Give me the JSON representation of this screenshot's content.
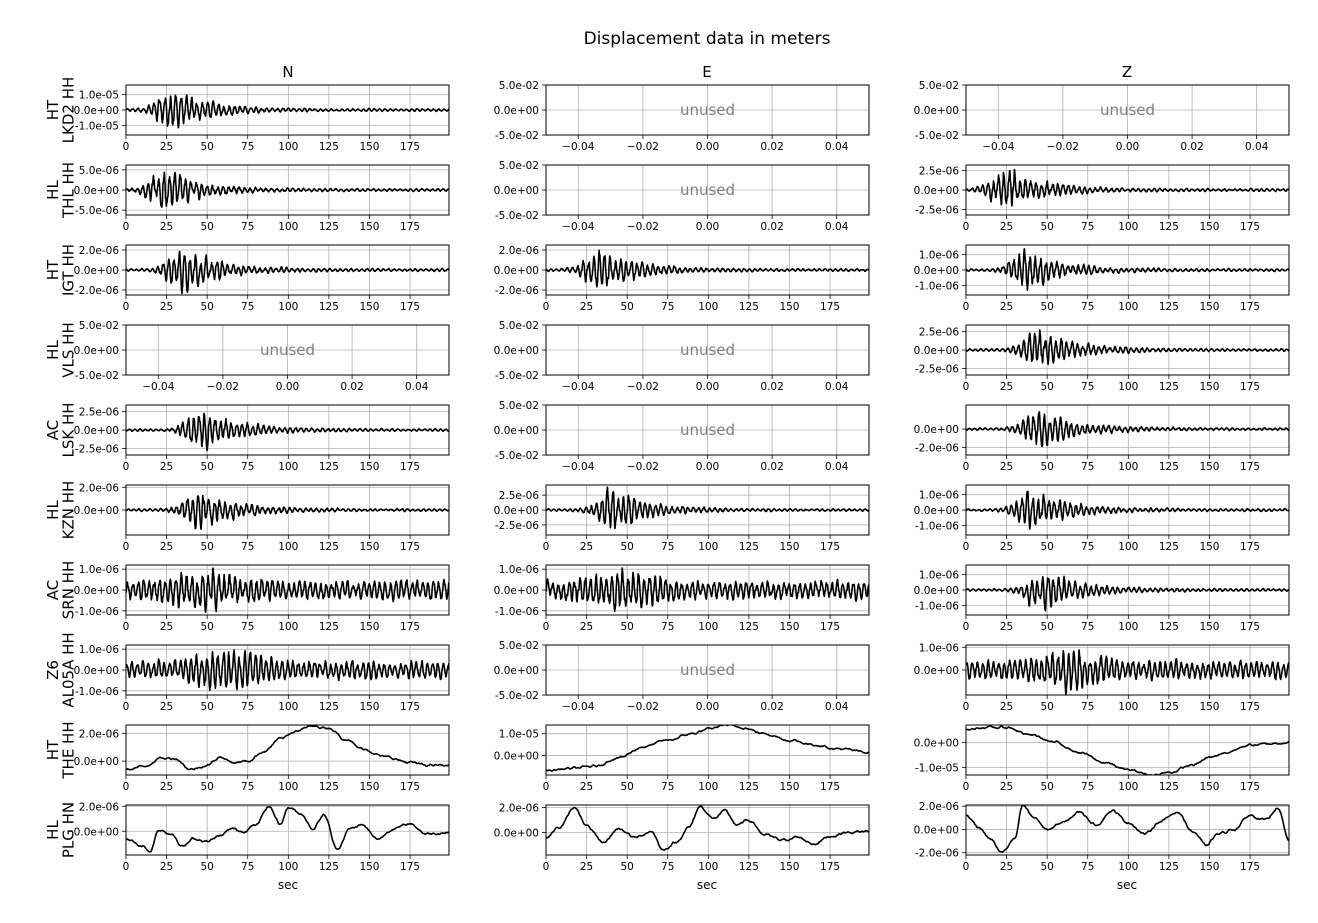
{
  "figure": {
    "title": "Displacement data in meters",
    "columns": [
      "N",
      "E",
      "Z"
    ],
    "unused_label": "unused",
    "xlabel": "sec"
  },
  "chart_data": {
    "type": "line",
    "title": "Displacement data in meters",
    "x_ticks_time": [
      0,
      25,
      50,
      75,
      100,
      125,
      150,
      175
    ],
    "x_tick_labels_time": [
      "0",
      "25",
      "50",
      "75",
      "100",
      "125",
      "150",
      "175"
    ],
    "xlim_time": [
      0,
      199
    ],
    "x_ticks_unused": [
      -0.04,
      -0.02,
      0.0,
      0.02,
      0.04
    ],
    "x_tick_labels_unused": [
      "−0.04",
      "−0.02",
      "0.00",
      "0.02",
      "0.04"
    ],
    "xlim_unused": [
      -0.05,
      0.05
    ],
    "ylim_unused": [
      -0.05,
      0.05
    ],
    "y_ticks_unused": [
      0.05,
      0.0,
      -0.05
    ],
    "y_tick_labels_unused": [
      "5.0e-02",
      "0.0e+00",
      "-5.0e-02"
    ],
    "grid": true,
    "rows": [
      {
        "network": "HT",
        "station": "LKD2",
        "channel": "HH",
        "label_line1": "HT",
        "label_line2": "LKD2 HH",
        "panels": [
          {
            "component": "N",
            "unused": false,
            "ylim": [
              -1.6e-05,
              1.6e-05
            ],
            "yticks": [
              1e-05,
              0,
              -1e-05
            ],
            "ytick_labels": [
              "1.0e-05",
              "0.0e+00",
              "-1.0e-05"
            ],
            "peak_time": 28,
            "amplitude": 1.5e-05,
            "envelope": "event"
          },
          {
            "component": "E",
            "unused": true
          },
          {
            "component": "Z",
            "unused": true
          }
        ]
      },
      {
        "network": "HL",
        "station": "THL",
        "channel": "HH",
        "label_line1": "HL",
        "label_line2": "THL HH",
        "panels": [
          {
            "component": "N",
            "unused": false,
            "ylim": [
              -6.2e-06,
              6.2e-06
            ],
            "yticks": [
              5e-06,
              0,
              -5e-06
            ],
            "ytick_labels": [
              "5.0e-06",
              "0.0e+00",
              "-5.0e-06"
            ],
            "peak_time": 24,
            "amplitude": 5.8e-06,
            "envelope": "event"
          },
          {
            "component": "E",
            "unused": true
          },
          {
            "component": "Z",
            "unused": false,
            "ylim": [
              -3.2e-06,
              3.2e-06
            ],
            "yticks": [
              2.5e-06,
              0,
              -2.5e-06
            ],
            "ytick_labels": [
              "2.5e-06",
              "0.0e+00",
              "-2.5e-06"
            ],
            "peak_time": 25,
            "amplitude": 3e-06,
            "envelope": "event"
          }
        ]
      },
      {
        "network": "HT",
        "station": "IGT",
        "channel": "HH",
        "label_line1": "HT",
        "label_line2": "IGT HH",
        "panels": [
          {
            "component": "N",
            "unused": false,
            "ylim": [
              -2.5e-06,
              2.5e-06
            ],
            "yticks": [
              2e-06,
              0,
              -2e-06
            ],
            "ytick_labels": [
              "2.0e-06",
              "0.0e+00",
              "-2.0e-06"
            ],
            "peak_time": 35,
            "amplitude": 2.4e-06,
            "envelope": "event"
          },
          {
            "component": "E",
            "unused": false,
            "ylim": [
              -2.5e-06,
              2.5e-06
            ],
            "yticks": [
              2e-06,
              0,
              -2e-06
            ],
            "ytick_labels": [
              "2.0e-06",
              "0.0e+00",
              "-2.0e-06"
            ],
            "peak_time": 33,
            "amplitude": 2.4e-06,
            "envelope": "event"
          },
          {
            "component": "Z",
            "unused": false,
            "ylim": [
              -1.6e-06,
              1.6e-06
            ],
            "yticks": [
              1e-06,
              0,
              -1e-06
            ],
            "ytick_labels": [
              "1.0e-06",
              "0.0e+00",
              "-1.0e-06"
            ],
            "peak_time": 38,
            "amplitude": 1.5e-06,
            "envelope": "event"
          }
        ]
      },
      {
        "network": "HL",
        "station": "VLS",
        "channel": "HH",
        "label_line1": "HL",
        "label_line2": "VLS HH",
        "panels": [
          {
            "component": "N",
            "unused": true
          },
          {
            "component": "E",
            "unused": true
          },
          {
            "component": "Z",
            "unused": false,
            "ylim": [
              -3.4e-06,
              3.4e-06
            ],
            "yticks": [
              2.5e-06,
              0,
              -2.5e-06
            ],
            "ytick_labels": [
              "2.5e-06",
              "0.0e+00",
              "-2.5e-06"
            ],
            "peak_time": 45,
            "amplitude": 3.2e-06,
            "envelope": "event"
          }
        ]
      },
      {
        "network": "AC",
        "station": "LSK",
        "channel": "HH",
        "label_line1": "AC",
        "label_line2": "LSK HH",
        "panels": [
          {
            "component": "N",
            "unused": false,
            "ylim": [
              -3.4e-06,
              3.4e-06
            ],
            "yticks": [
              2.5e-06,
              0,
              -2.5e-06
            ],
            "ytick_labels": [
              "2.5e-06",
              "0.0e+00",
              "-2.5e-06"
            ],
            "peak_time": 47,
            "amplitude": 3.2e-06,
            "envelope": "event"
          },
          {
            "component": "E",
            "unused": true
          },
          {
            "component": "Z",
            "unused": false,
            "ylim": [
              -2.8e-06,
              2.6e-06
            ],
            "yticks": [
              0,
              -2e-06
            ],
            "ytick_labels": [
              "0.0e+00",
              "-2.0e-06"
            ],
            "peak_time": 45,
            "amplitude": 2.4e-06,
            "envelope": "event"
          }
        ]
      },
      {
        "network": "HL",
        "station": "KZN",
        "channel": "HH",
        "label_line1": "HL",
        "label_line2": "KZN HH",
        "panels": [
          {
            "component": "N",
            "unused": false,
            "ylim": [
              -2.2e-06,
              2.2e-06
            ],
            "yticks": [
              2e-06,
              0
            ],
            "ytick_labels": [
              "2.0e-06",
              "0.0e+00"
            ],
            "peak_time": 45,
            "amplitude": 2e-06,
            "envelope": "event"
          },
          {
            "component": "E",
            "unused": false,
            "ylim": [
              -4.2e-06,
              4.2e-06
            ],
            "yticks": [
              2.5e-06,
              0,
              -2.5e-06
            ],
            "ytick_labels": [
              "2.5e-06",
              "0.0e+00",
              "-2.5e-06"
            ],
            "peak_time": 41,
            "amplitude": 4e-06,
            "envelope": "event"
          },
          {
            "component": "Z",
            "unused": false,
            "ylim": [
              -1.6e-06,
              1.6e-06
            ],
            "yticks": [
              1e-06,
              0,
              -1e-06
            ],
            "ytick_labels": [
              "1.0e-06",
              "0.0e+00",
              "-1.0e-06"
            ],
            "peak_time": 42,
            "amplitude": 1.5e-06,
            "envelope": "event"
          }
        ]
      },
      {
        "network": "AC",
        "station": "SRN",
        "channel": "HH",
        "label_line1": "AC",
        "label_line2": "SRN HH",
        "panels": [
          {
            "component": "N",
            "unused": false,
            "ylim": [
              -1.2e-06,
              1.2e-06
            ],
            "yticks": [
              1e-06,
              0,
              -1e-06
            ],
            "ytick_labels": [
              "1.0e-06",
              "0.0e+00",
              "-1.0e-06"
            ],
            "peak_time": 48,
            "amplitude": 1.1e-06,
            "envelope": "ongoing"
          },
          {
            "component": "E",
            "unused": false,
            "ylim": [
              -1.2e-06,
              1.2e-06
            ],
            "yticks": [
              1e-06,
              0,
              -1e-06
            ],
            "ytick_labels": [
              "1.0e-06",
              "0.0e+00",
              "-1.0e-06"
            ],
            "peak_time": 48,
            "amplitude": 1.1e-06,
            "envelope": "ongoing"
          },
          {
            "component": "Z",
            "unused": false,
            "ylim": [
              -1.6e-06,
              1.6e-06
            ],
            "yticks": [
              1e-06,
              0,
              -1e-06
            ],
            "ytick_labels": [
              "1.0e-06",
              "0.0e+00",
              "-1.0e-06"
            ],
            "peak_time": 47,
            "amplitude": 1.5e-06,
            "envelope": "event"
          }
        ]
      },
      {
        "network": "Z6",
        "station": "AL05A",
        "channel": "HH",
        "label_line1": "Z6",
        "label_line2": "AL05A HH",
        "panels": [
          {
            "component": "N",
            "unused": false,
            "ylim": [
              -1.2e-06,
              1.2e-06
            ],
            "yticks": [
              1e-06,
              0,
              -1e-06
            ],
            "ytick_labels": [
              "1.0e-06",
              "0.0e+00",
              "-1.0e-06"
            ],
            "peak_time": 65,
            "amplitude": 1.1e-06,
            "envelope": "ongoing"
          },
          {
            "component": "E",
            "unused": true
          },
          {
            "component": "Z",
            "unused": false,
            "ylim": [
              -1.1e-06,
              1.1e-06
            ],
            "yticks": [
              1e-06,
              0
            ],
            "ytick_labels": [
              "1.0e-06",
              "0.0e+00"
            ],
            "peak_time": 65,
            "amplitude": 1e-06,
            "envelope": "ongoing"
          }
        ]
      },
      {
        "network": "HT",
        "station": "THE",
        "channel": "HH",
        "label_line1": "HT",
        "label_line2": "THE HH",
        "panels": [
          {
            "component": "N",
            "unused": false,
            "ylim": [
              -1e-06,
              2.6e-06
            ],
            "yticks": [
              2e-06,
              0
            ],
            "ytick_labels": [
              "2.0e-06",
              "0.0e+00"
            ],
            "x": [
              0,
              10,
              22,
              30,
              40,
              50,
              58,
              66,
              75,
              85,
              95,
              105,
              115,
              125,
              135,
              145,
              160,
              175,
              185,
              199
            ],
            "y": [
              -6e-07,
              -4e-07,
              2e-07,
              2e-07,
              -6e-07,
              -3e-07,
              3e-07,
              -1e-07,
              0.0,
              7e-07,
              1.6e-06,
              2.2e-06,
              2.5e-06,
              2.4e-06,
              1.6e-06,
              9e-07,
              3e-07,
              -1e-07,
              -3e-07,
              -3e-07
            ]
          },
          {
            "component": "E",
            "unused": false,
            "ylim": [
              -9e-06,
              1.4e-05
            ],
            "yticks": [
              1e-05,
              0
            ],
            "ytick_labels": [
              "1.0e-05",
              "0.0e+00"
            ],
            "x": [
              0,
              15,
              30,
              45,
              60,
              75,
              90,
              100,
              110,
              120,
              135,
              150,
              165,
              180,
              199
            ],
            "y": [
              -7e-06,
              -6e-06,
              -5e-06,
              -1e-06,
              4e-06,
              7e-06,
              1e-05,
              1.2e-05,
              1.4e-05,
              1.3e-05,
              1e-05,
              7e-06,
              5e-06,
              3e-06,
              1.5e-06
            ]
          },
          {
            "component": "Z",
            "unused": false,
            "ylim": [
              -1.3e-05,
              7e-06
            ],
            "yticks": [
              0,
              -1e-05
            ],
            "ytick_labels": [
              "0.0e+00",
              "-1.0e-05"
            ],
            "x": [
              0,
              10,
              25,
              40,
              55,
              70,
              85,
              100,
              115,
              125,
              140,
              150,
              160,
              175,
              199
            ],
            "y": [
              5e-06,
              6e-06,
              6e-06,
              3e-06,
              0.0,
              -4e-06,
              -8e-06,
              -1.1e-05,
              -1.3e-05,
              -1.2e-05,
              -9e-06,
              -6e-06,
              -4e-06,
              -1e-06,
              0.0
            ]
          }
        ]
      },
      {
        "network": "HL",
        "station": "PLG",
        "channel": "HN",
        "label_line1": "HL",
        "label_line2": "PLG HN",
        "panels": [
          {
            "component": "N",
            "unused": false,
            "ylim": [
              -1.9e-06,
              2.1e-06
            ],
            "yticks": [
              2e-06,
              0
            ],
            "ytick_labels": [
              "2.0e-06",
              "0.0e+00"
            ],
            "x": [
              0,
              10,
              15,
              20,
              28,
              35,
              42,
              50,
              58,
              65,
              72,
              80,
              88,
              95,
              100,
              108,
              115,
              122,
              130,
              138,
              145,
              155,
              165,
              175,
              185,
              199
            ],
            "y": [
              -6e-07,
              -1.2e-06,
              -1.6e-06,
              1e-07,
              -2e-07,
              -1.2e-06,
              -6e-07,
              -8e-07,
              -4e-07,
              2e-07,
              0.0,
              5e-07,
              2e-06,
              6e-07,
              1.9e-06,
              1.4e-06,
              2e-07,
              1.3e-06,
              -1.4e-06,
              2e-07,
              5e-07,
              -6e-07,
              2e-07,
              6e-07,
              -2e-07,
              -1e-07
            ]
          },
          {
            "component": "E",
            "unused": false,
            "ylim": [
              -1.8e-06,
              2.2e-06
            ],
            "yticks": [
              2e-06,
              0
            ],
            "ytick_labels": [
              "2.0e-06",
              "0.0e+00"
            ],
            "x": [
              0,
              8,
              18,
              25,
              35,
              45,
              55,
              65,
              72,
              80,
              88,
              95,
              103,
              110,
              118,
              125,
              135,
              145,
              155,
              165,
              175,
              185,
              199
            ],
            "y": [
              -4e-07,
              4e-07,
              2e-06,
              5e-07,
              -8e-07,
              3e-07,
              -4e-07,
              1e-07,
              -1.4e-06,
              -8e-07,
              4e-07,
              2.1e-06,
              1.1e-06,
              1.7e-06,
              6e-07,
              1e-06,
              -2e-07,
              -6e-07,
              -4e-07,
              -9e-07,
              -3e-07,
              0.0,
              1e-07
            ]
          },
          {
            "component": "Z",
            "unused": false,
            "ylim": [
              -2.2e-06,
              2.1e-06
            ],
            "yticks": [
              2e-06,
              0,
              -2e-06
            ],
            "ytick_labels": [
              "2.0e-06",
              "0.0e+00",
              "-2.0e-06"
            ],
            "x": [
              0,
              8,
              15,
              22,
              30,
              35,
              42,
              50,
              60,
              70,
              80,
              90,
              100,
              110,
              120,
              130,
              140,
              148,
              155,
              165,
              175,
              185,
              192,
              199
            ],
            "y": [
              1.2e-06,
              2e-07,
              -8e-07,
              -2e-06,
              -8e-07,
              2e-06,
              1e-06,
              0.0,
              6e-07,
              1.5e-06,
              4e-07,
              1.6e-06,
              6e-07,
              -4e-07,
              7e-07,
              1.5e-06,
              -2e-07,
              -1.4e-06,
              -4e-07,
              0.0,
              1.2e-06,
              8e-07,
              1.9e-06,
              -1e-06
            ]
          }
        ]
      }
    ]
  }
}
